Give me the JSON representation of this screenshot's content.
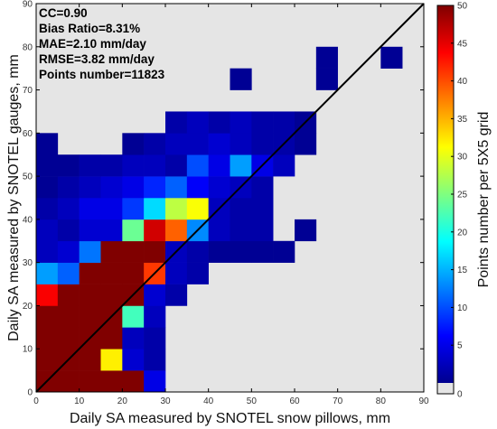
{
  "chart_data": {
    "type": "heatmap",
    "xlabel": "Daily SA measured by SNOTEL snow pillows, mm",
    "ylabel": "Daily SA measured by SNOTEL gauges, mm",
    "colorbar_label": "Points number per 5X5 grid",
    "xlim": [
      0,
      90
    ],
    "ylim": [
      0,
      90
    ],
    "x_ticks": [
      0,
      10,
      20,
      30,
      40,
      50,
      60,
      70,
      80,
      90
    ],
    "y_ticks": [
      0,
      10,
      20,
      30,
      40,
      50,
      60,
      70,
      80,
      90
    ],
    "colorbar_range": [
      0,
      50
    ],
    "colorbar_ticks": [
      0,
      5,
      10,
      15,
      20,
      25,
      30,
      35,
      40,
      45,
      50
    ],
    "colormap": "jet",
    "background_color": "#e5e5e5",
    "empty_bin_color": "#e5e5e5",
    "bin_size": 5,
    "reference_line": {
      "from": [
        0,
        0
      ],
      "to": [
        90,
        90
      ],
      "color": "#000000"
    },
    "stats_lines": [
      "CC=0.90",
      "Bias Ratio=8.31%",
      "MAE=2.10 mm/day",
      "RMSE=3.82 mm/day",
      "Points number=11823"
    ],
    "grid": false,
    "cells": [
      [
        0,
        0,
        50
      ],
      [
        5,
        0,
        50
      ],
      [
        10,
        0,
        50
      ],
      [
        15,
        0,
        50
      ],
      [
        20,
        0,
        50
      ],
      [
        25,
        0,
        5
      ],
      [
        0,
        5,
        50
      ],
      [
        5,
        5,
        50
      ],
      [
        10,
        5,
        50
      ],
      [
        15,
        5,
        32
      ],
      [
        20,
        5,
        4
      ],
      [
        25,
        5,
        2
      ],
      [
        0,
        10,
        50
      ],
      [
        5,
        10,
        50
      ],
      [
        10,
        10,
        50
      ],
      [
        15,
        10,
        50
      ],
      [
        20,
        10,
        3
      ],
      [
        25,
        10,
        2
      ],
      [
        0,
        15,
        50
      ],
      [
        5,
        15,
        50
      ],
      [
        10,
        15,
        50
      ],
      [
        15,
        15,
        50
      ],
      [
        20,
        15,
        22
      ],
      [
        25,
        15,
        3
      ],
      [
        0,
        20,
        44
      ],
      [
        5,
        20,
        50
      ],
      [
        10,
        20,
        50
      ],
      [
        15,
        20,
        50
      ],
      [
        20,
        20,
        50
      ],
      [
        25,
        20,
        4
      ],
      [
        30,
        20,
        2
      ],
      [
        0,
        25,
        14
      ],
      [
        5,
        25,
        11
      ],
      [
        10,
        25,
        50
      ],
      [
        15,
        25,
        50
      ],
      [
        20,
        25,
        50
      ],
      [
        25,
        25,
        41
      ],
      [
        30,
        25,
        3
      ],
      [
        35,
        25,
        2
      ],
      [
        0,
        30,
        3
      ],
      [
        5,
        30,
        4
      ],
      [
        10,
        30,
        12
      ],
      [
        15,
        30,
        50
      ],
      [
        20,
        30,
        50
      ],
      [
        25,
        30,
        50
      ],
      [
        30,
        30,
        3
      ],
      [
        35,
        30,
        2
      ],
      [
        40,
        30,
        1
      ],
      [
        45,
        30,
        1
      ],
      [
        50,
        30,
        1
      ],
      [
        55,
        30,
        1
      ],
      [
        0,
        35,
        3
      ],
      [
        5,
        35,
        2
      ],
      [
        10,
        35,
        4
      ],
      [
        15,
        35,
        4
      ],
      [
        20,
        35,
        24
      ],
      [
        25,
        35,
        46
      ],
      [
        30,
        35,
        39
      ],
      [
        35,
        35,
        13
      ],
      [
        40,
        35,
        3
      ],
      [
        45,
        35,
        2
      ],
      [
        50,
        35,
        2
      ],
      [
        60,
        35,
        1
      ],
      [
        0,
        40,
        2
      ],
      [
        5,
        40,
        3
      ],
      [
        10,
        40,
        5
      ],
      [
        15,
        40,
        5
      ],
      [
        20,
        40,
        9
      ],
      [
        25,
        40,
        17
      ],
      [
        30,
        40,
        28
      ],
      [
        35,
        40,
        31
      ],
      [
        40,
        40,
        3
      ],
      [
        45,
        40,
        2
      ],
      [
        50,
        40,
        2
      ],
      [
        0,
        45,
        1
      ],
      [
        5,
        45,
        2
      ],
      [
        10,
        45,
        3
      ],
      [
        15,
        45,
        4
      ],
      [
        20,
        45,
        5
      ],
      [
        25,
        45,
        8
      ],
      [
        30,
        45,
        11
      ],
      [
        35,
        45,
        6
      ],
      [
        40,
        45,
        4
      ],
      [
        45,
        45,
        3
      ],
      [
        50,
        45,
        2
      ],
      [
        0,
        50,
        1
      ],
      [
        5,
        50,
        1
      ],
      [
        10,
        50,
        2
      ],
      [
        15,
        50,
        2
      ],
      [
        20,
        50,
        3
      ],
      [
        25,
        50,
        3
      ],
      [
        30,
        50,
        2
      ],
      [
        35,
        50,
        10
      ],
      [
        40,
        50,
        5
      ],
      [
        45,
        50,
        14
      ],
      [
        50,
        50,
        5
      ],
      [
        55,
        50,
        3
      ],
      [
        0,
        55,
        1
      ],
      [
        20,
        55,
        1
      ],
      [
        25,
        55,
        2
      ],
      [
        30,
        55,
        3
      ],
      [
        35,
        55,
        3
      ],
      [
        40,
        55,
        4
      ],
      [
        45,
        55,
        3
      ],
      [
        50,
        55,
        2
      ],
      [
        55,
        55,
        2
      ],
      [
        60,
        55,
        1
      ],
      [
        30,
        60,
        2
      ],
      [
        35,
        60,
        3
      ],
      [
        40,
        60,
        2
      ],
      [
        45,
        60,
        3
      ],
      [
        50,
        60,
        2
      ],
      [
        55,
        60,
        2
      ],
      [
        60,
        60,
        1
      ],
      [
        45,
        70,
        1
      ],
      [
        65,
        70,
        1
      ],
      [
        65,
        75,
        1
      ],
      [
        80,
        75,
        1
      ]
    ]
  }
}
